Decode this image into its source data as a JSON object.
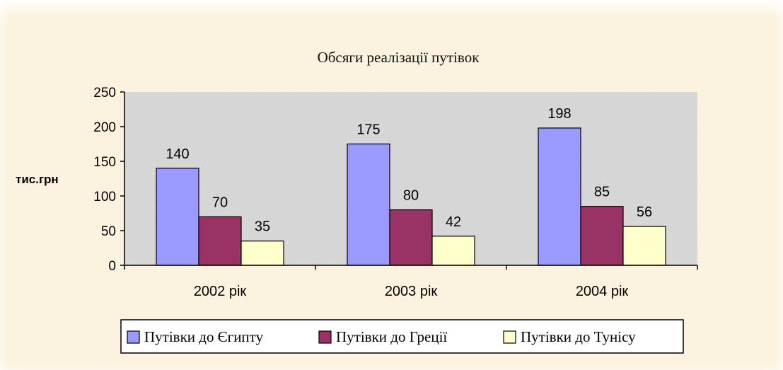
{
  "chart_data": {
    "type": "bar",
    "title": "Обсяги реалізації путівок",
    "ylabel": "тис.грн",
    "xlabel": "",
    "ylim": [
      0,
      250
    ],
    "yticks": [
      0,
      50,
      100,
      150,
      200,
      250
    ],
    "categories": [
      "2002 рік",
      "2003 рік",
      "2004 рік"
    ],
    "series": [
      {
        "name": "Путівки до Єгипту",
        "values": [
          140,
          175,
          198
        ],
        "color": "#9999ff"
      },
      {
        "name": "Путівки до Греції",
        "values": [
          70,
          80,
          85
        ],
        "color": "#993366"
      },
      {
        "name": "Путівки до Тунісу",
        "values": [
          35,
          42,
          56
        ],
        "color": "#ffffcc"
      }
    ],
    "legend": "bottom",
    "plot_background": "#dcdcdc"
  }
}
